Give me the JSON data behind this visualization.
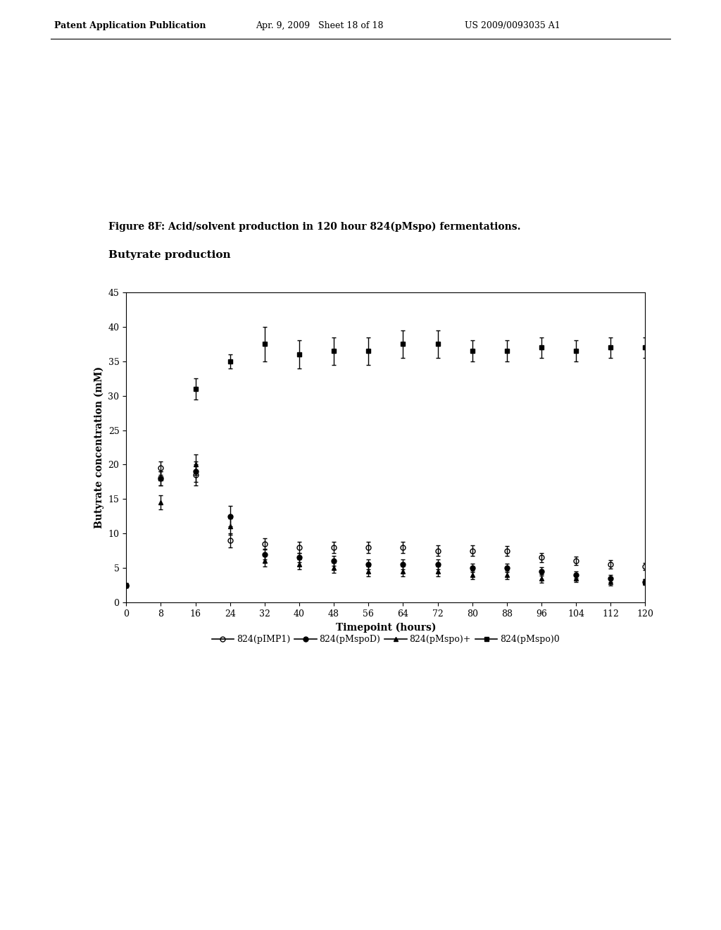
{
  "figure_title": "Figure 8F: Acid/solvent production in 120 hour 824(pMspo) fermentations.",
  "subtitle": "Butyrate production",
  "xlabel": "Timepoint (hours)",
  "ylabel": "Butyrate concentration (mM)",
  "xlim": [
    0,
    120
  ],
  "ylim": [
    0,
    45
  ],
  "xticks": [
    0,
    8,
    16,
    24,
    32,
    40,
    48,
    56,
    64,
    72,
    80,
    88,
    96,
    104,
    112,
    120
  ],
  "yticks": [
    0,
    5,
    10,
    15,
    20,
    25,
    30,
    35,
    40,
    45
  ],
  "series": [
    {
      "label": "824(pIMP1)",
      "marker": "o",
      "fillstyle": "none",
      "color": "#000000",
      "x": [
        0,
        8,
        16,
        24,
        32,
        40,
        48,
        56,
        64,
        72,
        80,
        88,
        96,
        104,
        112,
        120
      ],
      "y": [
        2.5,
        19.5,
        18.5,
        9.0,
        8.5,
        8.0,
        8.0,
        8.0,
        8.0,
        7.5,
        7.5,
        7.5,
        6.5,
        6.0,
        5.5,
        5.2
      ],
      "yerr": [
        0.3,
        1.0,
        1.5,
        1.0,
        0.8,
        0.8,
        0.8,
        0.8,
        0.8,
        0.8,
        0.8,
        0.7,
        0.7,
        0.6,
        0.6,
        0.5
      ]
    },
    {
      "label": "824(pMspoD)",
      "marker": "o",
      "fillstyle": "full",
      "color": "#000000",
      "x": [
        0,
        8,
        16,
        24,
        32,
        40,
        48,
        56,
        64,
        72,
        80,
        88,
        96,
        104,
        112,
        120
      ],
      "y": [
        2.5,
        18.0,
        19.0,
        12.5,
        7.0,
        6.5,
        6.0,
        5.5,
        5.5,
        5.5,
        5.0,
        5.0,
        4.5,
        4.0,
        3.5,
        3.0
      ],
      "yerr": [
        0.3,
        1.0,
        1.5,
        1.5,
        0.8,
        0.7,
        0.7,
        0.7,
        0.7,
        0.7,
        0.6,
        0.6,
        0.6,
        0.5,
        0.5,
        0.4
      ]
    },
    {
      "label": "824(pMspo)+",
      "marker": "^",
      "fillstyle": "full",
      "color": "#000000",
      "x": [
        0,
        8,
        16,
        24,
        32,
        40,
        48,
        56,
        64,
        72,
        80,
        88,
        96,
        104,
        112,
        120
      ],
      "y": [
        2.5,
        14.5,
        20.0,
        11.0,
        6.0,
        5.5,
        5.0,
        4.5,
        4.5,
        4.5,
        4.0,
        4.0,
        3.5,
        3.5,
        3.0,
        3.0
      ],
      "yerr": [
        0.3,
        1.0,
        1.5,
        1.2,
        0.8,
        0.7,
        0.7,
        0.7,
        0.7,
        0.7,
        0.6,
        0.6,
        0.6,
        0.5,
        0.5,
        0.4
      ]
    },
    {
      "label": "824(pMspo)0",
      "marker": "s",
      "fillstyle": "full",
      "color": "#000000",
      "x": [
        0,
        8,
        16,
        24,
        32,
        40,
        48,
        56,
        64,
        72,
        80,
        88,
        96,
        104,
        112,
        120
      ],
      "y": [
        2.5,
        18.0,
        31.0,
        35.0,
        37.5,
        36.0,
        36.5,
        36.5,
        37.5,
        37.5,
        36.5,
        36.5,
        37.0,
        36.5,
        37.0,
        37.0
      ],
      "yerr": [
        0.3,
        1.0,
        1.5,
        1.0,
        2.5,
        2.0,
        2.0,
        2.0,
        2.0,
        2.0,
        1.5,
        1.5,
        1.5,
        1.5,
        1.5,
        1.5
      ]
    }
  ],
  "header_left": "Patent Application Publication",
  "header_mid": "Apr. 9, 2009   Sheet 18 of 18",
  "header_right": "US 2009/0093035 A1",
  "background_color": "#ffffff",
  "figure_title_fontsize": 10,
  "subtitle_fontsize": 11,
  "axis_fontsize": 10,
  "tick_fontsize": 9,
  "legend_fontsize": 9
}
